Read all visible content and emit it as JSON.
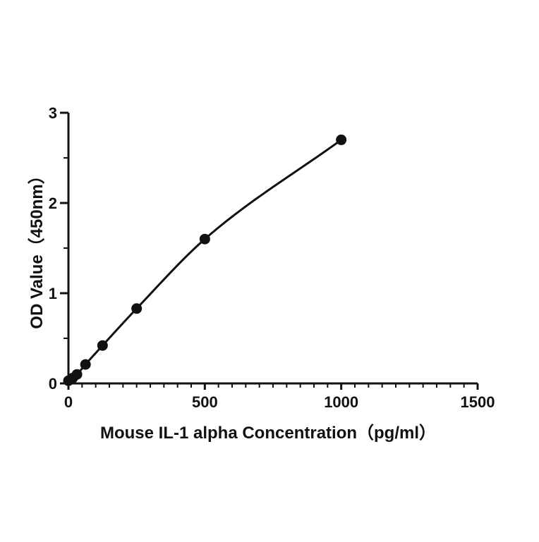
{
  "chart_data": {
    "type": "scatter",
    "title": "",
    "xlabel": "Mouse IL-1 alpha Concentration（pg/ml）",
    "ylabel": "OD Value（450nm）",
    "xlim": [
      0,
      1500
    ],
    "ylim": [
      0,
      3
    ],
    "x_ticks": [
      "0",
      "500",
      "1000",
      "1500"
    ],
    "y_ticks": [
      "0",
      "1",
      "2",
      "3"
    ],
    "grid": false,
    "legend": "none",
    "fit_line": true,
    "series": [
      {
        "x": [
          0,
          15.6,
          31.25,
          62.5,
          125,
          250,
          500,
          1000
        ],
        "y": [
          0.03,
          0.06,
          0.1,
          0.21,
          0.42,
          0.83,
          1.6,
          2.7
        ]
      }
    ],
    "colors": {
      "axis": "#111111",
      "marker": "#111111",
      "line": "#111111"
    }
  }
}
